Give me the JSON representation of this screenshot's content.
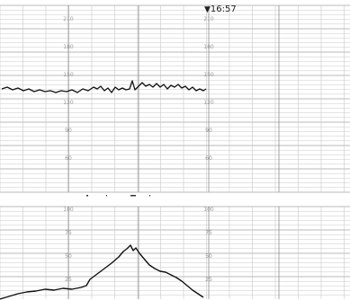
{
  "event_marker": {
    "arrow": "▼",
    "time": "16:57"
  },
  "fhr_scale_labels": [
    "210",
    "180",
    "150",
    "120",
    "90",
    "60"
  ],
  "toco_scale_labels": [
    "100",
    "75",
    "50",
    "25"
  ],
  "colors": {
    "paper": "#ffffff",
    "grid_fine": "#c9c9c9",
    "grid_major": "#8e8e8e",
    "trace": "#111111",
    "scale_text": "#9a9a9a"
  }
}
